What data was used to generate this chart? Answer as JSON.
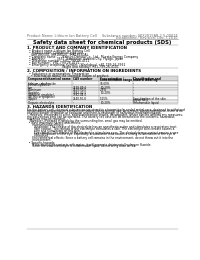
{
  "header_left": "Product Name: Lithium Ion Battery Cell",
  "header_right_line1": "Substance number: SPX2815AR-2.5-0001E",
  "header_right_line2": "Established / Revision: Dec.7,2010",
  "title": "Safety data sheet for chemical products (SDS)",
  "section1_title": "1. PRODUCT AND COMPANY IDENTIFICATION",
  "section1_lines": [
    "  • Product name: Lithium Ion Battery Cell",
    "  • Product code: Cylindrical-type cell",
    "    (IHR18650U, IHR18650L, IHR18650A)",
    "  • Company name:      Bansyo Denyku Co., Ltd., Murata Energy Company",
    "  • Address:            3651  Kamitajiri, Sumoto-City, Hyogo, Japan",
    "  • Telephone number:  +81-799-26-4111",
    "  • Fax number:  +81-799-26-4121",
    "  • Emergency telephone number  (Weekdays) +81-799-26-3962",
    "                                   (Night and holiday) +81-799-26-4101"
  ],
  "section2_title": "2. COMPOSITION / INFORMATION ON INGREDIENTS",
  "section2_sub": "  • Substance or preparation: Preparation",
  "section2_sub2": "    • Information about the chemical nature of product:",
  "table_col_names": [
    "Component/chemical name",
    "CAS number",
    "Concentration /\nConcentration range",
    "Classification and\nhazard labeling"
  ],
  "table_rows": [
    [
      "Lithium cobalt oxide\n(LiMnxCoyNizO2)",
      "-",
      "30-60%",
      "-"
    ],
    [
      "Iron",
      "7439-89-6",
      "10-20%",
      "-"
    ],
    [
      "Aluminum",
      "7429-90-5",
      "2-5%",
      "-"
    ],
    [
      "Graphite\n(Artificial graphite)\n(AI-90x or graphite)",
      "7782-42-5\n7782-44-0",
      "10-20%",
      "-"
    ],
    [
      "Copper",
      "7440-50-8",
      "5-15%",
      "Sensitization of the skin\ngroup No.2"
    ],
    [
      "Organic electrolyte",
      "-",
      "10-20%",
      "Inflammable liquid"
    ]
  ],
  "section3_title": "3. HAZARDS IDENTIFICATION",
  "section3_text": [
    "For the battery cell, chemical substances are stored in a hermetically sealed metal case, designed to withstand",
    "temperatures and pressure exerted exothermic during normal use. As a result, during normal use, there is no",
    "physical danger of ignition or explosion and there is no danger of hazardous materials leakage.",
    "   However, if exposed to a fire, added mechanical shocks, decomposes, where electric without any measures,",
    "the gas release vent can be operated. The battery cell case will be breached or the contents, hazardous",
    "materials may be released.",
    "   Moreover, if heated strongly by the surrounding fire, small gas may be emitted.",
    "",
    "  • Most important hazard and effects:",
    "      Human health effects:",
    "        Inhalation: The release of the electrolyte has an anesthesia action and stimulates a respiratory tract.",
    "        Skin contact: The release of the electrolyte stimulates a skin. The electrolyte skin contact causes a",
    "        sore and stimulation on the skin.",
    "        Eye contact: The release of the electrolyte stimulates eyes. The electrolyte eye contact causes a sore",
    "        and stimulation on the eye. Especially, a substance that causes a strong inflammation of the eye is",
    "        contained.",
    "      Environmental effects: Since a battery cell remains in the environment, do not throw out it into the",
    "      environment.",
    "",
    "  • Specific hazards:",
    "      If the electrolyte contacts with water, it will generate detrimental hydrogen fluoride.",
    "      Since the used electrolyte is inflammable liquid, do not bring close to fire."
  ],
  "bg_color": "#ffffff",
  "text_color": "#000000",
  "gray_text": "#666666",
  "table_header_bg": "#d8d8d8",
  "table_row_bg1": "#ffffff",
  "table_row_bg2": "#efefef",
  "border_color": "#888888"
}
